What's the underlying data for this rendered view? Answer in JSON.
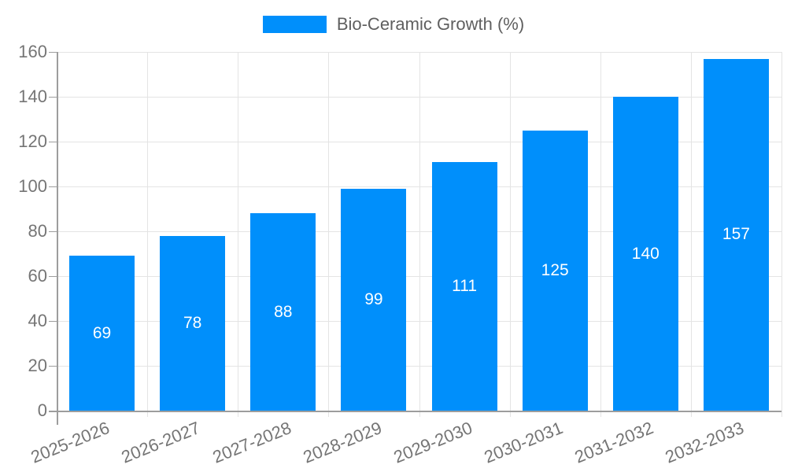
{
  "page": {
    "background": "#ffffff"
  },
  "legend": {
    "label": "Bio-Ceramic Growth (%)",
    "swatch_color": "#008FFB"
  },
  "chart_data": {
    "type": "bar",
    "title": "Bio-Ceramic Growth (%)",
    "categories": [
      "2025-2026",
      "2026-2027",
      "2027-2028",
      "2028-2029",
      "2029-2030",
      "2030-2031",
      "2031-2032",
      "2032-2033"
    ],
    "series": [
      {
        "name": "Bio-Ceramic Growth (%)",
        "values": [
          69,
          78,
          88,
          99,
          111,
          125,
          140,
          157
        ]
      }
    ],
    "value_labels_shown": true,
    "xlabel": "",
    "ylabel": "",
    "ylim": [
      0,
      160
    ],
    "yticks": [
      0,
      20,
      40,
      60,
      80,
      100,
      120,
      140,
      160
    ],
    "grid": true,
    "legend_position": "top-center",
    "x_label_rotation_deg": -22,
    "colors": {
      "bar": "#008FFB",
      "value_label": "#ffffff",
      "axis_text": "#757575",
      "legend_text": "#5f5f5f",
      "grid_line": "#e4e4e4",
      "axis_line": "#9d9d9d"
    }
  }
}
